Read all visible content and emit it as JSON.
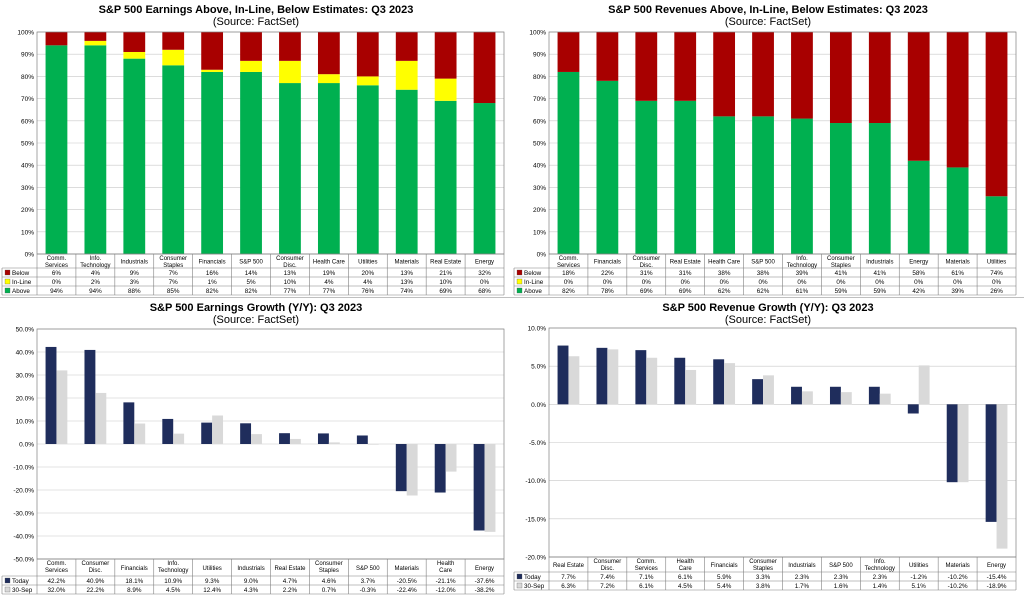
{
  "colors": {
    "above": "#00b050",
    "inline": "#ffff00",
    "below": "#a80000",
    "today": "#1f2d5c",
    "prev": "#d9d9d9"
  },
  "charts": [
    {
      "title": "S&P 500 Earnings Above, In-Line, Below Estimates: Q3 2023",
      "subtitle": "(Source: FactSet)",
      "chart_data": {
        "type": "bar",
        "stacked": true,
        "table": true,
        "categories": [
          "Comm.\nServices",
          "Info.\nTechnology",
          "Industrials",
          "Consumer\nStaples",
          "Financials",
          "S&P 500",
          "Consumer\nDisc.",
          "Health Care",
          "Utilities",
          "Materials",
          "Real Estate",
          "Energy"
        ],
        "y_ticks": [
          "0%",
          "10%",
          "20%",
          "30%",
          "40%",
          "50%",
          "60%",
          "70%",
          "80%",
          "90%",
          "100%"
        ],
        "ylim": [
          0,
          100
        ],
        "series": [
          {
            "name": "Below",
            "key": "below",
            "values": [
              6,
              4,
              9,
              7,
              16,
              14,
              13,
              19,
              20,
              13,
              21,
              32
            ],
            "labels": [
              "6%",
              "4%",
              "9%",
              "7%",
              "16%",
              "14%",
              "13%",
              "19%",
              "20%",
              "13%",
              "21%",
              "32%"
            ]
          },
          {
            "name": "In-Line",
            "key": "inline",
            "values": [
              0,
              2,
              3,
              7,
              1,
              5,
              10,
              4,
              4,
              13,
              10,
              0
            ],
            "labels": [
              "0%",
              "2%",
              "3%",
              "7%",
              "1%",
              "5%",
              "10%",
              "4%",
              "4%",
              "13%",
              "10%",
              "0%"
            ]
          },
          {
            "name": "Above",
            "key": "above",
            "values": [
              94,
              94,
              88,
              85,
              82,
              82,
              77,
              77,
              76,
              74,
              69,
              68
            ],
            "labels": [
              "94%",
              "94%",
              "88%",
              "85%",
              "82%",
              "82%",
              "77%",
              "77%",
              "76%",
              "74%",
              "69%",
              "68%"
            ]
          }
        ]
      }
    },
    {
      "title": "S&P 500 Revenues Above, In-Line, Below Estimates: Q3 2023",
      "subtitle": "(Source: FactSet)",
      "chart_data": {
        "type": "bar",
        "stacked": true,
        "table": true,
        "categories": [
          "Comm.\nServices",
          "Financials",
          "Consumer\nDisc.",
          "Real Estate",
          "Health Care",
          "S&P 500",
          "Info.\nTechnology",
          "Consumer\nStaples",
          "Industrials",
          "Energy",
          "Materials",
          "Utilities"
        ],
        "y_ticks": [
          "0%",
          "10%",
          "20%",
          "30%",
          "40%",
          "50%",
          "60%",
          "70%",
          "80%",
          "90%",
          "100%"
        ],
        "ylim": [
          0,
          100
        ],
        "series": [
          {
            "name": "Below",
            "key": "below",
            "values": [
              18,
              22,
              31,
              31,
              38,
              38,
              39,
              41,
              41,
              58,
              61,
              74
            ],
            "labels": [
              "18%",
              "22%",
              "31%",
              "31%",
              "38%",
              "38%",
              "39%",
              "41%",
              "41%",
              "58%",
              "61%",
              "74%"
            ]
          },
          {
            "name": "In-Line",
            "key": "inline",
            "values": [
              0,
              0,
              0,
              0,
              0,
              0,
              0,
              0,
              0,
              0,
              0,
              0
            ],
            "labels": [
              "0%",
              "0%",
              "0%",
              "0%",
              "0%",
              "0%",
              "0%",
              "0%",
              "0%",
              "0%",
              "0%",
              "0%"
            ]
          },
          {
            "name": "Above",
            "key": "above",
            "values": [
              82,
              78,
              69,
              69,
              62,
              62,
              61,
              59,
              59,
              42,
              39,
              26
            ],
            "labels": [
              "82%",
              "78%",
              "69%",
              "69%",
              "62%",
              "62%",
              "61%",
              "59%",
              "59%",
              "42%",
              "39%",
              "26%"
            ]
          }
        ]
      }
    },
    {
      "title": "S&P 500 Earnings Growth (Y/Y): Q3 2023",
      "subtitle": "(Source: FactSet)",
      "chart_data": {
        "type": "bar",
        "stacked": false,
        "table": true,
        "categories": [
          "Comm.\nServices",
          "Consumer\nDisc.",
          "Financials",
          "Info.\nTechnology",
          "Utilities",
          "Industrials",
          "Real Estate",
          "Consumer\nStaples",
          "S&P 500",
          "Materials",
          "Health\nCare",
          "Energy"
        ],
        "y_ticks": [
          "-50.0%",
          "-40.0%",
          "-30.0%",
          "-20.0%",
          "-10.0%",
          "0.0%",
          "10.0%",
          "20.0%",
          "30.0%",
          "40.0%",
          "50.0%"
        ],
        "ylim": [
          -50,
          50
        ],
        "series": [
          {
            "name": "Today",
            "key": "today",
            "values": [
              42.2,
              40.9,
              18.1,
              10.9,
              9.3,
              9.0,
              4.7,
              4.6,
              3.7,
              -20.5,
              -21.1,
              -37.6
            ],
            "labels": [
              "42.2%",
              "40.9%",
              "18.1%",
              "10.9%",
              "9.3%",
              "9.0%",
              "4.7%",
              "4.6%",
              "3.7%",
              "-20.5%",
              "-21.1%",
              "-37.6%"
            ]
          },
          {
            "name": "30-Sep",
            "key": "prev",
            "values": [
              32.0,
              22.2,
              8.9,
              4.5,
              12.4,
              4.3,
              2.2,
              0.7,
              -0.3,
              -22.4,
              -12.0,
              -38.2
            ],
            "labels": [
              "32.0%",
              "22.2%",
              "8.9%",
              "4.5%",
              "12.4%",
              "4.3%",
              "2.2%",
              "0.7%",
              "-0.3%",
              "-22.4%",
              "-12.0%",
              "-38.2%"
            ]
          }
        ]
      }
    },
    {
      "title": "S&P 500 Revenue Growth (Y/Y): Q3 2023",
      "subtitle": "(Source: FactSet)",
      "chart_data": {
        "type": "bar",
        "stacked": false,
        "table": true,
        "categories": [
          "Real Estate",
          "Consumer\nDisc.",
          "Comm.\nServices",
          "Health\nCare",
          "Financials",
          "Consumer\nStaples",
          "Industrials",
          "S&P 500",
          "Info.\nTechnology",
          "Utilities",
          "Materials",
          "Energy"
        ],
        "y_ticks": [
          "-20.0%",
          "-15.0%",
          "-10.0%",
          "-5.0%",
          "0.0%",
          "5.0%",
          "10.0%"
        ],
        "ylim": [
          -20,
          10
        ],
        "series": [
          {
            "name": "Today",
            "key": "today",
            "values": [
              7.7,
              7.4,
              7.1,
              6.1,
              5.9,
              3.3,
              2.3,
              2.3,
              2.3,
              -1.2,
              -10.2,
              -15.4
            ],
            "labels": [
              "7.7%",
              "7.4%",
              "7.1%",
              "6.1%",
              "5.9%",
              "3.3%",
              "2.3%",
              "2.3%",
              "2.3%",
              "-1.2%",
              "-10.2%",
              "-15.4%"
            ]
          },
          {
            "name": "30-Sep",
            "key": "prev",
            "values": [
              6.3,
              7.2,
              6.1,
              4.5,
              5.4,
              3.8,
              1.7,
              1.6,
              1.4,
              5.1,
              -10.2,
              -18.9
            ],
            "labels": [
              "6.3%",
              "7.2%",
              "6.1%",
              "4.5%",
              "5.4%",
              "3.8%",
              "1.7%",
              "1.6%",
              "1.4%",
              "5.1%",
              "-10.2%",
              "-18.9%"
            ]
          }
        ]
      }
    }
  ]
}
